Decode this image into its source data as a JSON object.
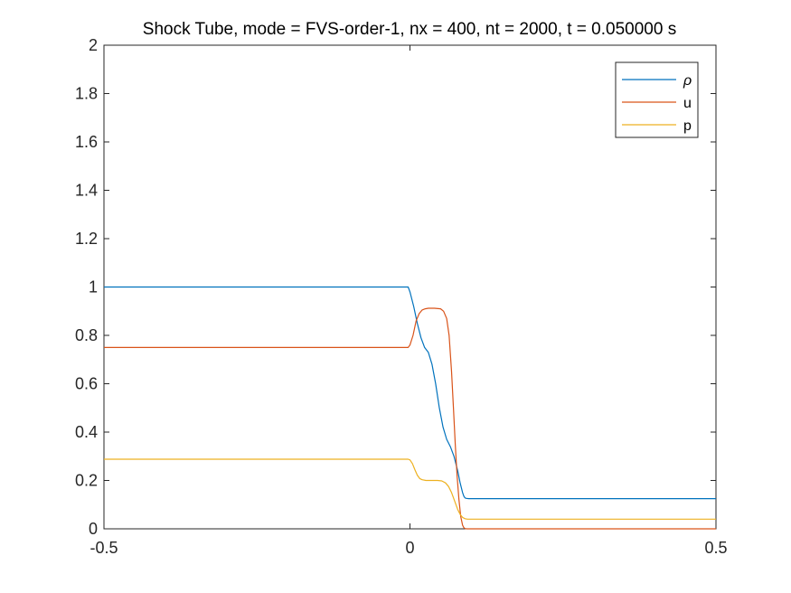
{
  "chart_data": {
    "type": "line",
    "title": "Shock Tube, mode = FVS-order-1, nx = 400, nt = 2000, t = 0.050000 s",
    "xlabel": "",
    "ylabel": "",
    "xlim": [
      -0.5,
      0.5
    ],
    "ylim": [
      0,
      2
    ],
    "x_ticks": [
      -0.5,
      0,
      0.5
    ],
    "x_tick_labels": [
      "-0.5",
      "0",
      "0.5"
    ],
    "y_ticks": [
      0,
      0.2,
      0.4,
      0.6,
      0.8,
      1,
      1.2,
      1.4,
      1.6,
      1.8,
      2
    ],
    "y_tick_labels": [
      "0",
      "0.2",
      "0.4",
      "0.6",
      "0.8",
      "1",
      "1.2",
      "1.4",
      "1.6",
      "1.8",
      "2"
    ],
    "grid": false,
    "legend_position": "top-right",
    "series": [
      {
        "name": "ρ",
        "color": "#0072BD",
        "x": [
          -0.5,
          -0.003,
          0.0,
          0.006,
          0.012,
          0.018,
          0.024,
          0.03,
          0.036,
          0.042,
          0.048,
          0.054,
          0.06,
          0.066,
          0.072,
          0.078,
          0.082,
          0.086,
          0.088,
          0.09,
          0.092,
          0.096,
          0.5
        ],
        "y": [
          1.0,
          1.0,
          0.98,
          0.92,
          0.85,
          0.79,
          0.75,
          0.73,
          0.68,
          0.6,
          0.5,
          0.42,
          0.37,
          0.34,
          0.3,
          0.24,
          0.19,
          0.15,
          0.135,
          0.128,
          0.126,
          0.125,
          0.125
        ]
      },
      {
        "name": "u",
        "color": "#D95319",
        "x": [
          -0.5,
          -0.003,
          0.0,
          0.005,
          0.01,
          0.015,
          0.02,
          0.025,
          0.03,
          0.04,
          0.05,
          0.055,
          0.06,
          0.064,
          0.068,
          0.071,
          0.074,
          0.077,
          0.08,
          0.083,
          0.086,
          0.088,
          0.09,
          0.093,
          0.5
        ],
        "y": [
          0.75,
          0.75,
          0.76,
          0.8,
          0.86,
          0.89,
          0.905,
          0.91,
          0.912,
          0.912,
          0.91,
          0.9,
          0.87,
          0.8,
          0.65,
          0.5,
          0.35,
          0.22,
          0.12,
          0.05,
          0.015,
          0.005,
          0.001,
          0.0,
          0.0
        ]
      },
      {
        "name": "p",
        "color": "#EDB120",
        "x": [
          -0.5,
          -0.003,
          0.0,
          0.004,
          0.008,
          0.012,
          0.016,
          0.02,
          0.026,
          0.035,
          0.045,
          0.052,
          0.058,
          0.063,
          0.068,
          0.073,
          0.078,
          0.082,
          0.086,
          0.09,
          0.094,
          0.5
        ],
        "y": [
          0.288,
          0.288,
          0.285,
          0.27,
          0.245,
          0.222,
          0.208,
          0.203,
          0.2,
          0.2,
          0.2,
          0.198,
          0.19,
          0.175,
          0.15,
          0.115,
          0.08,
          0.06,
          0.047,
          0.042,
          0.04,
          0.04
        ]
      }
    ]
  }
}
